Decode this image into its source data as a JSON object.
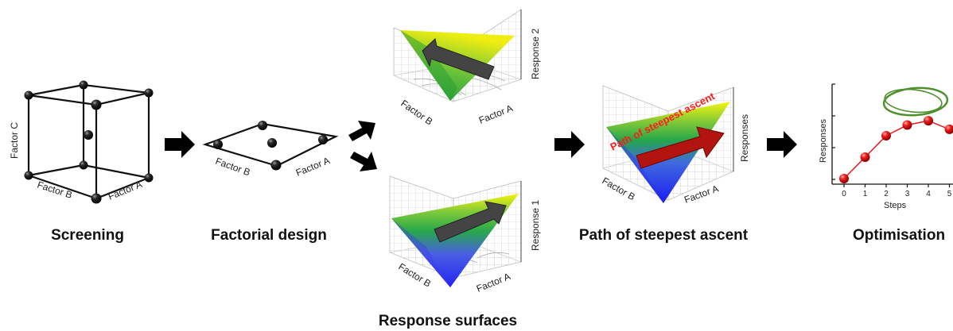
{
  "screening": {
    "title": "Screening",
    "factor_a": "Factor A",
    "factor_b": "Factor B",
    "factor_c": "Factor C"
  },
  "factorial": {
    "title": "Factorial design",
    "factor_a": "Factor A",
    "factor_b": "Factor B"
  },
  "response_surfaces": {
    "title": "Response surfaces",
    "top": {
      "response_label": "Response 2",
      "factor_a": "Factor A",
      "factor_b": "Factor B"
    },
    "bottom": {
      "response_label": "Response 1",
      "factor_a": "Factor A",
      "factor_b": "Factor B"
    }
  },
  "steepest": {
    "title": "Path of steepest ascent",
    "annotation": "Path of steepest ascent",
    "response_label": "Responses",
    "factor_a": "Factor A",
    "factor_b": "Factor B"
  },
  "optimisation": {
    "title": "Optimisation",
    "y_label": "Responses",
    "x_label": "Steps",
    "x_ticks": [
      "0",
      "1",
      "2",
      "3",
      "4",
      "5"
    ],
    "points": [
      {
        "step": 0,
        "response": 1
      },
      {
        "step": 1,
        "response": 2
      },
      {
        "step": 2,
        "response": 3
      },
      {
        "step": 3,
        "response": 3.5
      },
      {
        "step": 4,
        "response": 3.7
      },
      {
        "step": 5,
        "response": 3.3
      }
    ],
    "colors": {
      "points": "#e8151b",
      "line": "#e8151b",
      "highlight": "#4f8f2c"
    }
  },
  "colors": {
    "arrow": "#000000",
    "surface_low": "#3d3cf5",
    "surface_mid": "#2aa845",
    "surface_high": "#f4f20b",
    "path_arrow": "#b2140f",
    "path_text": "#ff1a1a"
  }
}
